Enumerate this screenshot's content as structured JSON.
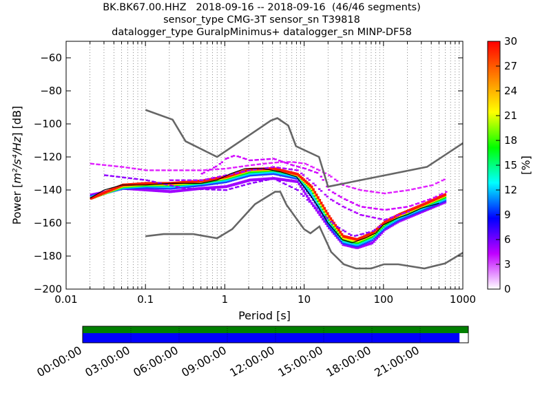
{
  "title_lines": [
    "BK.BK67.00.HHZ   2018-09-16 -- 2018-09-16  (46/46 segments)",
    "sensor_type CMG-3T sensor_sn T39818",
    "datalogger_type GuralpMinimus+ datalogger_sn MINP-DF58"
  ],
  "chart_data": [
    {
      "type": "heatmap",
      "xlabel": "Period [s]",
      "ylabel_prefix": "Power [",
      "ylabel_units": "m²/s⁴/Hz",
      "ylabel_suffix": "] [dB]",
      "xscale": "log",
      "xlim": [
        0.01,
        1000
      ],
      "ylim": [
        -200,
        -50
      ],
      "xticks": [
        0.01,
        0.1,
        1,
        10,
        100,
        1000
      ],
      "xtick_labels": [
        "0.01",
        "0.1",
        "1",
        "10",
        "100",
        "1000"
      ],
      "yticks": [
        -200,
        -180,
        -160,
        -140,
        -120,
        -100,
        -80,
        -60
      ],
      "ytick_labels": [
        "−200",
        "−180",
        "−160",
        "−140",
        "−120",
        "−100",
        "−80",
        "−60"
      ],
      "grid": "dotted vertical",
      "colorbar": {
        "label": "[%]",
        "range": [
          0,
          30
        ],
        "ticks": [
          0,
          3,
          6,
          9,
          12,
          15,
          18,
          21,
          24,
          27,
          30
        ],
        "colors": [
          "#ffffff",
          "#c000ff",
          "#0000ff",
          "#00ffff",
          "#00ff00",
          "#ffff00",
          "#ff8000",
          "#ff0000"
        ]
      },
      "noise_models": [
        {
          "name": "NHNM",
          "color": "#666666",
          "points": [
            [
              0.1,
              -91.5
            ],
            [
              0.22,
              -97.4
            ],
            [
              0.32,
              -110.5
            ],
            [
              0.8,
              -120
            ],
            [
              3.8,
              -98
            ],
            [
              4.6,
              -96.5
            ],
            [
              6.3,
              -101
            ],
            [
              7.9,
              -113.5
            ],
            [
              15.4,
              -120
            ],
            [
              20,
              -138
            ],
            [
              354,
              -126
            ],
            [
              10000,
              -80
            ]
          ]
        },
        {
          "name": "NLNM",
          "color": "#666666",
          "points": [
            [
              0.1,
              -168
            ],
            [
              0.17,
              -166.7
            ],
            [
              0.4,
              -166.7
            ],
            [
              0.8,
              -169.2
            ],
            [
              1.24,
              -163.7
            ],
            [
              2.4,
              -148.6
            ],
            [
              4.3,
              -141.1
            ],
            [
              5,
              -141.1
            ],
            [
              6,
              -149
            ],
            [
              10,
              -163.8
            ],
            [
              12,
              -166.2
            ],
            [
              15.6,
              -162.1
            ],
            [
              21.9,
              -177.5
            ],
            [
              31.6,
              -185
            ],
            [
              45,
              -187.5
            ],
            [
              70,
              -187.5
            ],
            [
              101,
              -185
            ],
            [
              154,
              -185
            ],
            [
              328,
              -187.5
            ],
            [
              600,
              -184.4
            ],
            [
              1000,
              -178
            ],
            [
              10000,
              -168
            ]
          ]
        }
      ],
      "mode_line": {
        "color": "#000000",
        "points": [
          [
            0.02,
            -145
          ],
          [
            0.03,
            -140
          ],
          [
            0.05,
            -137
          ],
          [
            0.1,
            -137
          ],
          [
            0.2,
            -136
          ],
          [
            0.5,
            -136
          ],
          [
            0.8,
            -134
          ],
          [
            1.2,
            -130
          ],
          [
            1.8,
            -127
          ],
          [
            3,
            -127
          ],
          [
            5,
            -129
          ],
          [
            8,
            -132
          ],
          [
            10,
            -138
          ],
          [
            15,
            -150
          ],
          [
            20,
            -160
          ],
          [
            30,
            -170
          ],
          [
            40,
            -172
          ],
          [
            60,
            -169
          ],
          [
            80,
            -166
          ],
          [
            100,
            -161
          ],
          [
            150,
            -157
          ],
          [
            200,
            -155
          ],
          [
            300,
            -151
          ],
          [
            500,
            -148
          ]
        ]
      },
      "density_bands": [
        {
          "name": "spread-low",
          "color": "#a000ff",
          "points": [
            [
              0.02,
              -143
            ],
            [
              0.05,
              -139
            ],
            [
              0.1,
              -140
            ],
            [
              0.2,
              -141
            ],
            [
              0.5,
              -139
            ],
            [
              1,
              -138
            ],
            [
              2,
              -134
            ],
            [
              4,
              -133
            ],
            [
              8,
              -135
            ],
            [
              12,
              -148
            ],
            [
              20,
              -163
            ],
            [
              30,
              -173
            ],
            [
              45,
              -175
            ],
            [
              70,
              -172
            ],
            [
              100,
              -164
            ],
            [
              150,
              -159
            ],
            [
              300,
              -153
            ],
            [
              600,
              -147
            ]
          ]
        },
        {
          "name": "blue",
          "color": "#1e3cff",
          "points": [
            [
              0.02,
              -144
            ],
            [
              0.05,
              -139
            ],
            [
              0.1,
              -138.5
            ],
            [
              0.2,
              -139
            ],
            [
              0.5,
              -137
            ],
            [
              1,
              -135
            ],
            [
              2,
              -131
            ],
            [
              4,
              -130
            ],
            [
              8,
              -133
            ],
            [
              12,
              -144
            ],
            [
              20,
              -162
            ],
            [
              30,
              -172
            ],
            [
              45,
              -174
            ],
            [
              70,
              -170
            ],
            [
              100,
              -163
            ],
            [
              150,
              -158
            ],
            [
              300,
              -152
            ],
            [
              600,
              -146
            ]
          ]
        },
        {
          "name": "cyan",
          "color": "#00dcff",
          "points": [
            [
              0.02,
              -144.5
            ],
            [
              0.05,
              -138.5
            ],
            [
              0.1,
              -137.5
            ],
            [
              0.2,
              -138
            ],
            [
              0.5,
              -136
            ],
            [
              1,
              -134
            ],
            [
              2,
              -130
            ],
            [
              4,
              -129
            ],
            [
              8,
              -132
            ],
            [
              12,
              -142
            ],
            [
              20,
              -160
            ],
            [
              30,
              -171
            ],
            [
              45,
              -173
            ],
            [
              70,
              -169
            ],
            [
              100,
              -162
            ],
            [
              150,
              -157
            ],
            [
              300,
              -151
            ],
            [
              600,
              -145
            ]
          ]
        },
        {
          "name": "green",
          "color": "#10f000",
          "points": [
            [
              0.02,
              -145
            ],
            [
              0.05,
              -138
            ],
            [
              0.1,
              -137
            ],
            [
              0.2,
              -137
            ],
            [
              0.5,
              -135.5
            ],
            [
              1,
              -133
            ],
            [
              2,
              -129
            ],
            [
              4,
              -128
            ],
            [
              8,
              -131
            ],
            [
              12,
              -140
            ],
            [
              20,
              -158
            ],
            [
              30,
              -170
            ],
            [
              45,
              -172
            ],
            [
              70,
              -168
            ],
            [
              100,
              -161
            ],
            [
              150,
              -156
            ],
            [
              300,
              -150
            ],
            [
              600,
              -144
            ]
          ]
        },
        {
          "name": "yellow",
          "color": "#f5f000",
          "points": [
            [
              0.02,
              -145
            ],
            [
              0.05,
              -137.5
            ],
            [
              0.1,
              -136.5
            ],
            [
              0.2,
              -136.5
            ],
            [
              0.5,
              -135
            ],
            [
              1,
              -132.5
            ],
            [
              2,
              -128
            ],
            [
              4,
              -127.5
            ],
            [
              8,
              -131
            ],
            [
              12,
              -139
            ],
            [
              20,
              -157
            ],
            [
              30,
              -169
            ],
            [
              45,
              -171
            ],
            [
              70,
              -167
            ],
            [
              100,
              -160
            ],
            [
              150,
              -155.5
            ],
            [
              300,
              -149.5
            ],
            [
              600,
              -143
            ]
          ]
        },
        {
          "name": "red",
          "color": "#ff1a00",
          "points": [
            [
              0.02,
              -145
            ],
            [
              0.05,
              -137
            ],
            [
              0.1,
              -136
            ],
            [
              0.2,
              -136
            ],
            [
              0.5,
              -134.5
            ],
            [
              1,
              -132
            ],
            [
              2,
              -127.5
            ],
            [
              4,
              -127
            ],
            [
              8,
              -130.5
            ],
            [
              12,
              -138
            ],
            [
              20,
              -156
            ],
            [
              30,
              -168
            ],
            [
              45,
              -170
            ],
            [
              70,
              -166
            ],
            [
              100,
              -159.5
            ],
            [
              150,
              -155
            ],
            [
              300,
              -149
            ],
            [
              600,
              -142.5
            ]
          ]
        }
      ],
      "outlier_tracks": [
        {
          "name": "upper-flat",
          "color": "#e020ff",
          "points": [
            [
              0.02,
              -124
            ],
            [
              0.05,
              -126
            ],
            [
              0.1,
              -128
            ],
            [
              0.5,
              -128
            ],
            [
              1,
              -127
            ],
            [
              2,
              -125
            ],
            [
              3,
              -124
            ],
            [
              5,
              -123
            ],
            [
              7,
              -123
            ],
            [
              10,
              -124
            ],
            [
              15,
              -128
            ],
            [
              20,
              -131
            ],
            [
              30,
              -137
            ],
            [
              50,
              -140
            ],
            [
              100,
              -142
            ],
            [
              200,
              -140
            ],
            [
              400,
              -137
            ],
            [
              600,
              -133
            ]
          ]
        },
        {
          "name": "upper-arc",
          "color": "#d000ff",
          "points": [
            [
              0.5,
              -130
            ],
            [
              0.8,
              -125
            ],
            [
              1,
              -121
            ],
            [
              1.3,
              -119
            ],
            [
              2,
              -122
            ],
            [
              4,
              -121
            ],
            [
              7,
              -125
            ],
            [
              10,
              -127
            ],
            [
              15,
              -130
            ],
            [
              20,
              -140
            ],
            [
              30,
              -145
            ],
            [
              50,
              -150
            ],
            [
              100,
              -152
            ],
            [
              200,
              -150
            ],
            [
              400,
              -145
            ],
            [
              600,
              -141
            ]
          ]
        },
        {
          "name": "mid-track",
          "color": "#b000ff",
          "points": [
            [
              0.2,
              -134
            ],
            [
              0.5,
              -134
            ],
            [
              1,
              -131
            ],
            [
              2,
              -128
            ],
            [
              4,
              -126
            ],
            [
              8,
              -128
            ],
            [
              12,
              -135
            ],
            [
              20,
              -145
            ],
            [
              30,
              -150
            ],
            [
              50,
              -155
            ],
            [
              100,
              -158
            ],
            [
              200,
              -153
            ]
          ]
        },
        {
          "name": "lower-track",
          "color": "#9000ff",
          "points": [
            [
              0.03,
              -131
            ],
            [
              0.1,
              -134
            ],
            [
              0.3,
              -139
            ],
            [
              1,
              -140
            ],
            [
              2,
              -136
            ],
            [
              4,
              -133
            ],
            [
              8,
              -140
            ],
            [
              15,
              -153
            ],
            [
              25,
              -162
            ],
            [
              40,
              -168
            ],
            [
              70,
              -165
            ],
            [
              100,
              -160
            ]
          ]
        }
      ]
    },
    {
      "type": "timeline",
      "tick_labels": [
        "00:00:00",
        "03:00:00",
        "06:00:00",
        "09:00:00",
        "12:00:00",
        "15:00:00",
        "18:00:00",
        "21:00:00"
      ],
      "top_bar_color": "#008000",
      "bottom_bar_color": "#0000ff",
      "coverage_fraction": 0.977
    }
  ]
}
